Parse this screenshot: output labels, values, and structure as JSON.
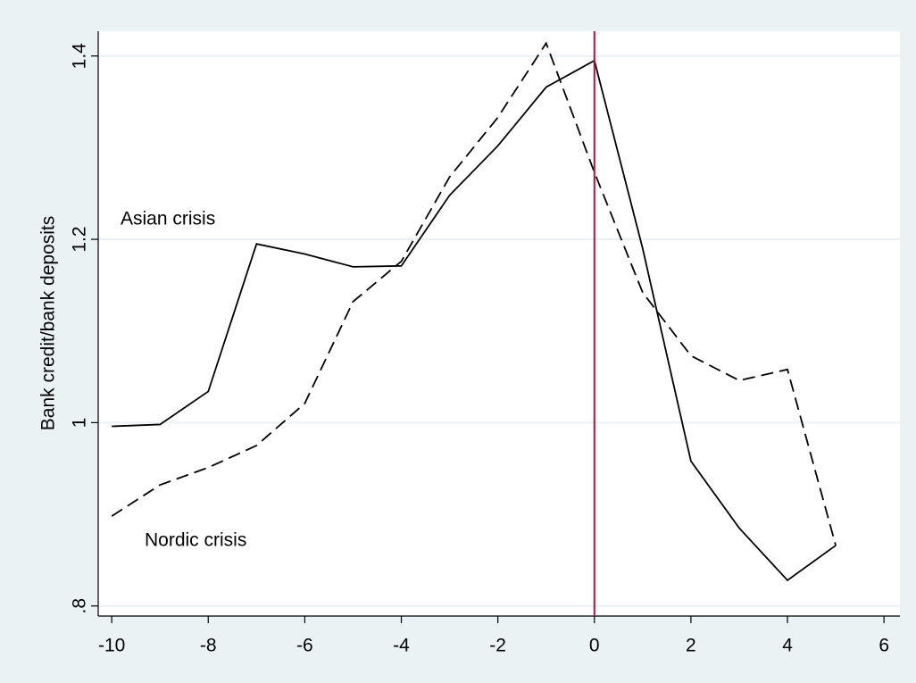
{
  "chart_data": {
    "type": "line",
    "y_label": "Bank credit/bank deposits",
    "x": [
      -10,
      -9,
      -8,
      -7,
      -6,
      -5,
      -4,
      -3,
      -2,
      -1,
      0,
      1,
      2,
      3,
      4,
      5
    ],
    "series": [
      {
        "name": "Asian crisis",
        "color": "#000000",
        "linestyle": "solid",
        "values": [
          0.996,
          0.998,
          1.034,
          1.195,
          1.184,
          1.17,
          1.171,
          1.248,
          1.302,
          1.366,
          1.395,
          1.19,
          0.958,
          0.885,
          0.828,
          0.866
        ]
      },
      {
        "name": "Nordic crisis",
        "color": "#000000",
        "linestyle": "dashed",
        "values": [
          0.898,
          0.932,
          0.951,
          0.975,
          1.021,
          1.132,
          1.176,
          1.268,
          1.333,
          1.414,
          1.273,
          1.142,
          1.073,
          1.046,
          1.058,
          0.866
        ]
      }
    ],
    "xlim": [
      -10.28,
      6.33
    ],
    "ylim": [
      0.789,
      1.427
    ],
    "xticks": [
      -10,
      -8,
      -6,
      -4,
      -2,
      0,
      2,
      4,
      6
    ],
    "yticks": [
      {
        "value": 0.8,
        "label": ".8"
      },
      1,
      1.2,
      1.4
    ],
    "xline": 0,
    "xline_color": "#a3173f",
    "grid": true
  }
}
